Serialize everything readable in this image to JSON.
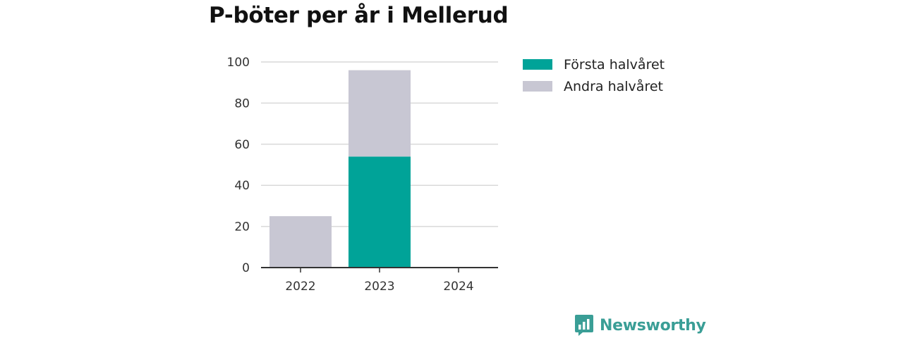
{
  "chart_data": {
    "type": "bar",
    "stacked": true,
    "title": "P-böter per år i Mellerud",
    "categories": [
      "2022",
      "2023",
      "2024"
    ],
    "series": [
      {
        "name": "Första halvåret",
        "color": "#00a398",
        "values": [
          0,
          54,
          0
        ]
      },
      {
        "name": "Andra halvåret",
        "color": "#c8c7d3",
        "values": [
          25,
          42,
          0
        ]
      }
    ],
    "yticks": [
      0,
      20,
      40,
      60,
      80,
      100
    ],
    "ylim": [
      0,
      100
    ],
    "grid": true,
    "legend_position": "right"
  },
  "brand": {
    "name": "Newsworthy",
    "color": "#3a9e96",
    "icon": "bar-chart-speech-bubble-icon"
  }
}
